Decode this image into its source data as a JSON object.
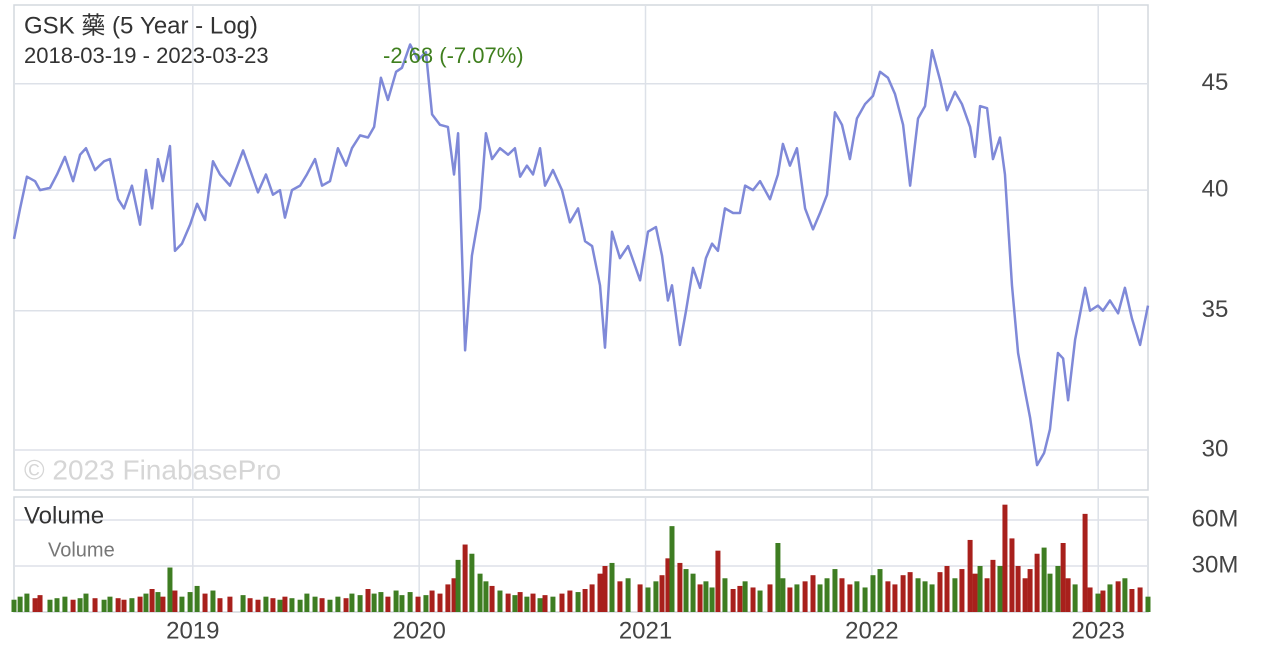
{
  "chart_data": [
    {
      "type": "line",
      "title": "GSK 藥 (5 Year - Log)",
      "subtitle": "2018-03-19 - 2023-03-23",
      "annotation": "-2.68 (-7.07%)",
      "watermark": "© 2023 FinabasePro",
      "log_scale": true,
      "grid": true,
      "color": "#7f89d8",
      "xlim": [
        2018.21,
        2023.22
      ],
      "xticks": [
        2019,
        2020,
        2021,
        2022,
        2023
      ],
      "ylim": [
        28.7,
        49.1
      ],
      "yticks": [
        30,
        35,
        40,
        45
      ],
      "x": [
        2018.21,
        2018.237,
        2018.267,
        2018.303,
        2018.325,
        2018.369,
        2018.4,
        2018.435,
        2018.471,
        2018.502,
        2018.528,
        2018.568,
        2018.608,
        2018.634,
        2018.67,
        2018.696,
        2018.731,
        2018.767,
        2018.793,
        2018.82,
        2018.846,
        2018.868,
        2018.899,
        2018.921,
        2018.952,
        2018.988,
        2019.019,
        2019.054,
        2019.089,
        2019.12,
        2019.164,
        2019.222,
        2019.253,
        2019.288,
        2019.323,
        2019.354,
        2019.385,
        2019.407,
        2019.438,
        2019.474,
        2019.504,
        2019.54,
        2019.571,
        2019.606,
        2019.641,
        2019.677,
        2019.703,
        2019.739,
        2019.774,
        2019.801,
        2019.831,
        2019.862,
        2019.898,
        2019.924,
        2019.96,
        2019.995,
        2020.03,
        2020.057,
        2020.092,
        2020.127,
        2020.154,
        2020.172,
        2020.203,
        2020.233,
        2020.269,
        2020.295,
        2020.322,
        2020.357,
        2020.393,
        2020.423,
        2020.446,
        2020.476,
        2020.503,
        2020.534,
        2020.556,
        2020.591,
        2020.631,
        2020.666,
        2020.702,
        2020.733,
        2020.764,
        2020.799,
        2020.821,
        2020.852,
        2020.887,
        2020.923,
        2020.976,
        2021.011,
        2021.046,
        2021.073,
        2021.099,
        2021.117,
        2021.152,
        2021.179,
        2021.21,
        2021.241,
        2021.267,
        2021.294,
        2021.32,
        2021.351,
        2021.387,
        2021.417,
        2021.44,
        2021.475,
        2021.506,
        2021.55,
        2021.585,
        2021.607,
        2021.638,
        2021.669,
        2021.705,
        2021.74,
        2021.771,
        2021.802,
        2021.837,
        2021.868,
        2021.903,
        2021.934,
        2021.97,
        2022.005,
        2022.036,
        2022.071,
        2022.102,
        2022.138,
        2022.169,
        2022.204,
        2022.235,
        2022.266,
        2022.301,
        2022.332,
        2022.367,
        2022.398,
        2022.434,
        2022.456,
        2022.478,
        2022.509,
        2022.535,
        2022.566,
        2022.588,
        2022.619,
        2022.646,
        2022.677,
        2022.699,
        2022.73,
        2022.761,
        2022.787,
        2022.822,
        2022.845,
        2022.867,
        2022.898,
        2022.942,
        2022.964,
        2022.999,
        2023.021,
        2023.052,
        2023.088,
        2023.118,
        2023.149,
        2023.185,
        2023.22
      ],
      "values": [
        37.9,
        39.2,
        40.6,
        40.4,
        40.0,
        40.1,
        40.7,
        41.5,
        40.4,
        41.6,
        41.9,
        40.9,
        41.3,
        41.4,
        39.6,
        39.2,
        40.2,
        38.5,
        40.9,
        39.2,
        41.4,
        40.4,
        42.0,
        37.4,
        37.7,
        38.5,
        39.4,
        38.7,
        41.3,
        40.7,
        40.2,
        41.8,
        40.9,
        39.9,
        40.7,
        39.8,
        40.0,
        38.8,
        40.0,
        40.2,
        40.7,
        41.4,
        40.2,
        40.4,
        41.9,
        41.1,
        41.9,
        42.5,
        42.4,
        42.9,
        45.3,
        44.2,
        45.6,
        45.8,
        47.0,
        46.2,
        46.6,
        43.5,
        43.0,
        42.9,
        40.7,
        42.6,
        33.5,
        37.2,
        39.2,
        42.6,
        41.4,
        41.9,
        41.6,
        41.9,
        40.6,
        41.1,
        40.7,
        41.9,
        40.2,
        40.9,
        40.0,
        38.6,
        39.2,
        37.8,
        37.6,
        36.0,
        33.6,
        38.2,
        37.1,
        37.6,
        36.2,
        38.2,
        38.4,
        37.2,
        35.4,
        36.0,
        33.7,
        35.0,
        36.7,
        35.9,
        37.1,
        37.7,
        37.4,
        39.2,
        39.0,
        39.0,
        40.2,
        40.0,
        40.4,
        39.6,
        40.7,
        42.1,
        41.1,
        41.9,
        39.2,
        38.3,
        39.0,
        39.8,
        43.6,
        43.0,
        41.4,
        43.3,
        44.0,
        44.4,
        45.6,
        45.3,
        44.5,
        43.0,
        40.2,
        43.3,
        43.9,
        46.7,
        45.2,
        43.7,
        44.6,
        44.0,
        42.9,
        41.5,
        43.9,
        43.8,
        41.4,
        42.4,
        40.7,
        36.0,
        33.4,
        32.0,
        31.1,
        29.5,
        29.9,
        30.7,
        33.4,
        33.2,
        31.7,
        33.9,
        35.9,
        35.0,
        35.2,
        35.0,
        35.4,
        34.9,
        35.9,
        34.7,
        33.7,
        35.2
      ]
    },
    {
      "type": "bar",
      "title": "Volume",
      "grid": true,
      "xlim": [
        2018.21,
        2023.22
      ],
      "xticks": [
        2019,
        2020,
        2021,
        2022,
        2023
      ],
      "ylim": [
        0,
        75000000
      ],
      "yticks": [
        {
          "value": 30000000,
          "label": "30M"
        },
        {
          "value": 60000000,
          "label": "60M"
        }
      ],
      "x": [
        2018.21,
        2018.237,
        2018.267,
        2018.303,
        2018.325,
        2018.369,
        2018.4,
        2018.435,
        2018.471,
        2018.502,
        2018.528,
        2018.568,
        2018.608,
        2018.634,
        2018.67,
        2018.696,
        2018.731,
        2018.767,
        2018.793,
        2018.82,
        2018.846,
        2018.868,
        2018.899,
        2018.921,
        2018.952,
        2018.988,
        2019.019,
        2019.054,
        2019.089,
        2019.12,
        2019.164,
        2019.222,
        2019.253,
        2019.288,
        2019.323,
        2019.354,
        2019.385,
        2019.407,
        2019.438,
        2019.474,
        2019.504,
        2019.54,
        2019.571,
        2019.606,
        2019.641,
        2019.677,
        2019.703,
        2019.739,
        2019.774,
        2019.801,
        2019.831,
        2019.862,
        2019.898,
        2019.924,
        2019.96,
        2019.995,
        2020.03,
        2020.057,
        2020.092,
        2020.127,
        2020.154,
        2020.172,
        2020.203,
        2020.233,
        2020.269,
        2020.295,
        2020.322,
        2020.357,
        2020.393,
        2020.423,
        2020.446,
        2020.476,
        2020.503,
        2020.534,
        2020.556,
        2020.591,
        2020.631,
        2020.666,
        2020.702,
        2020.733,
        2020.764,
        2020.799,
        2020.821,
        2020.852,
        2020.887,
        2020.923,
        2020.976,
        2021.011,
        2021.046,
        2021.073,
        2021.099,
        2021.117,
        2021.152,
        2021.179,
        2021.21,
        2021.241,
        2021.267,
        2021.294,
        2021.32,
        2021.351,
        2021.387,
        2021.417,
        2021.44,
        2021.475,
        2021.506,
        2021.55,
        2021.585,
        2021.607,
        2021.638,
        2021.669,
        2021.705,
        2021.74,
        2021.771,
        2021.802,
        2021.837,
        2021.868,
        2021.903,
        2021.934,
        2021.97,
        2022.005,
        2022.036,
        2022.071,
        2022.102,
        2022.138,
        2022.169,
        2022.204,
        2022.235,
        2022.266,
        2022.301,
        2022.332,
        2022.367,
        2022.398,
        2022.434,
        2022.456,
        2022.478,
        2022.509,
        2022.535,
        2022.566,
        2022.588,
        2022.619,
        2022.646,
        2022.677,
        2022.699,
        2022.73,
        2022.761,
        2022.787,
        2022.822,
        2022.845,
        2022.867,
        2022.898,
        2022.942,
        2022.964,
        2022.999,
        2023.021,
        2023.052,
        2023.088,
        2023.118,
        2023.149,
        2023.185,
        2023.22
      ],
      "series": [
        {
          "name": "Volume",
          "values": [
            8000000,
            10000000,
            12000000,
            9000000,
            11000000,
            8000000,
            9000000,
            10000000,
            8000000,
            9000000,
            12000000,
            9000000,
            8000000,
            10000000,
            9000000,
            8000000,
            9000000,
            10000000,
            12000000,
            15000000,
            13000000,
            10000000,
            29000000,
            14000000,
            10000000,
            13000000,
            17000000,
            12000000,
            14000000,
            9000000,
            10000000,
            11000000,
            9000000,
            8000000,
            10000000,
            9000000,
            8000000,
            10000000,
            9000000,
            8000000,
            12000000,
            10000000,
            9000000,
            8000000,
            10000000,
            9000000,
            12000000,
            11000000,
            15000000,
            12000000,
            13000000,
            10000000,
            14000000,
            11000000,
            13000000,
            10000000,
            11000000,
            14000000,
            12000000,
            18000000,
            22000000,
            34000000,
            44000000,
            38000000,
            25000000,
            20000000,
            17000000,
            14000000,
            12000000,
            11000000,
            13000000,
            10000000,
            12000000,
            9000000,
            11000000,
            10000000,
            12000000,
            14000000,
            13000000,
            15000000,
            18000000,
            25000000,
            30000000,
            32000000,
            20000000,
            22000000,
            18000000,
            16000000,
            20000000,
            24000000,
            35000000,
            56000000,
            32000000,
            28000000,
            25000000,
            18000000,
            20000000,
            16000000,
            40000000,
            22000000,
            15000000,
            17000000,
            20000000,
            16000000,
            14000000,
            18000000,
            45000000,
            22000000,
            16000000,
            18000000,
            20000000,
            24000000,
            18000000,
            22000000,
            28000000,
            22000000,
            18000000,
            20000000,
            16000000,
            24000000,
            28000000,
            20000000,
            18000000,
            24000000,
            26000000,
            22000000,
            20000000,
            18000000,
            26000000,
            30000000,
            22000000,
            28000000,
            47000000,
            25000000,
            30000000,
            22000000,
            34000000,
            30000000,
            70000000,
            48000000,
            30000000,
            22000000,
            28000000,
            38000000,
            42000000,
            25000000,
            30000000,
            45000000,
            22000000,
            18000000,
            64000000,
            16000000,
            12000000,
            14000000,
            18000000,
            20000000,
            22000000,
            15000000,
            16000000,
            10000000
          ],
          "colors": [
            "#3e7d22",
            "#3e7d22",
            "#3e7d22",
            "#a8201c",
            "#a8201c",
            "#3e7d22",
            "#3e7d22",
            "#3e7d22",
            "#a8201c",
            "#3e7d22",
            "#3e7d22",
            "#a8201c",
            "#3e7d22",
            "#3e7d22",
            "#a8201c",
            "#a8201c",
            "#3e7d22",
            "#a8201c",
            "#3e7d22",
            "#a8201c",
            "#3e7d22",
            "#a8201c",
            "#3e7d22",
            "#a8201c",
            "#3e7d22",
            "#3e7d22",
            "#3e7d22",
            "#a8201c",
            "#3e7d22",
            "#a8201c",
            "#a8201c",
            "#3e7d22",
            "#a8201c",
            "#a8201c",
            "#3e7d22",
            "#a8201c",
            "#3e7d22",
            "#a8201c",
            "#3e7d22",
            "#3e7d22",
            "#3e7d22",
            "#3e7d22",
            "#a8201c",
            "#3e7d22",
            "#3e7d22",
            "#a8201c",
            "#3e7d22",
            "#3e7d22",
            "#a8201c",
            "#3e7d22",
            "#3e7d22",
            "#a8201c",
            "#3e7d22",
            "#3e7d22",
            "#3e7d22",
            "#a8201c",
            "#3e7d22",
            "#a8201c",
            "#a8201c",
            "#a8201c",
            "#a8201c",
            "#3e7d22",
            "#a8201c",
            "#3e7d22",
            "#3e7d22",
            "#3e7d22",
            "#a8201c",
            "#3e7d22",
            "#a8201c",
            "#3e7d22",
            "#a8201c",
            "#3e7d22",
            "#a8201c",
            "#3e7d22",
            "#a8201c",
            "#3e7d22",
            "#a8201c",
            "#a8201c",
            "#3e7d22",
            "#a8201c",
            "#a8201c",
            "#a8201c",
            "#a8201c",
            "#3e7d22",
            "#a8201c",
            "#3e7d22",
            "#a8201c",
            "#3e7d22",
            "#3e7d22",
            "#a8201c",
            "#a8201c",
            "#3e7d22",
            "#a8201c",
            "#3e7d22",
            "#3e7d22",
            "#a8201c",
            "#3e7d22",
            "#3e7d22",
            "#a8201c",
            "#3e7d22",
            "#a8201c",
            "#a8201c",
            "#3e7d22",
            "#a8201c",
            "#3e7d22",
            "#a8201c",
            "#3e7d22",
            "#3e7d22",
            "#a8201c",
            "#3e7d22",
            "#a8201c",
            "#a8201c",
            "#3e7d22",
            "#3e7d22",
            "#3e7d22",
            "#a8201c",
            "#a8201c",
            "#3e7d22",
            "#3e7d22",
            "#3e7d22",
            "#3e7d22",
            "#a8201c",
            "#a8201c",
            "#a8201c",
            "#a8201c",
            "#3e7d22",
            "#3e7d22",
            "#3e7d22",
            "#a8201c",
            "#a8201c",
            "#3e7d22",
            "#a8201c",
            "#a8201c",
            "#a8201c",
            "#3e7d22",
            "#a8201c",
            "#a8201c",
            "#3e7d22",
            "#a8201c",
            "#a8201c",
            "#a8201c",
            "#a8201c",
            "#a8201c",
            "#a8201c",
            "#3e7d22",
            "#3e7d22",
            "#3e7d22",
            "#a8201c",
            "#a8201c",
            "#3e7d22",
            "#a8201c",
            "#a8201c",
            "#3e7d22",
            "#a8201c",
            "#3e7d22",
            "#a8201c",
            "#3e7d22",
            "#a8201c",
            "#a8201c",
            "#3e7d22"
          ]
        }
      ]
    }
  ]
}
